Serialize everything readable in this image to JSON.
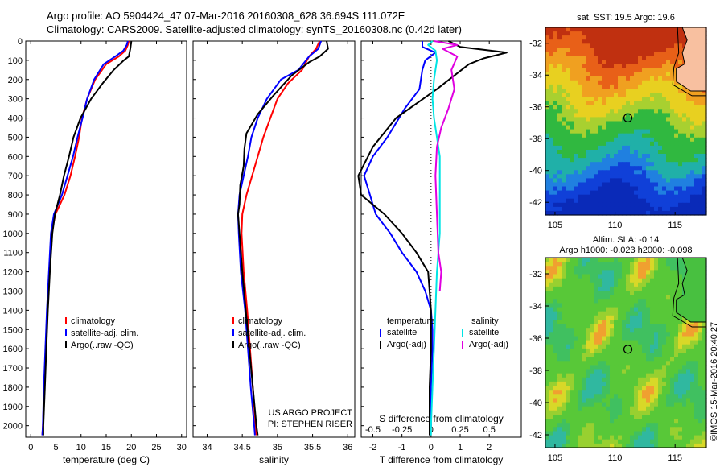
{
  "header": {
    "line1": "Argo profile: AO 5904424_47 07-Mar-2016 20160308_628 36.694S 111.072E",
    "line2": "Climatology: CARS2009. Satellite-adjusted climatology: synTS_20160308.nc (0.42d later)"
  },
  "stamp": "©IMOS 15-Mar-2016 20:40:27",
  "colors": {
    "climatology": "#ff0000",
    "satellite": "#0000ff",
    "argo": "#000000",
    "sal_satellite": "#00e5e5",
    "sal_argo": "#e000e0"
  },
  "chart_data": [
    {
      "type": "line",
      "id": "temperature",
      "xlabel": "temperature (deg C)",
      "ylabel": "",
      "xlim": [
        -1,
        31
      ],
      "ylim": [
        0,
        2060
      ],
      "y_reversed": true,
      "xticks": [
        0,
        5,
        10,
        15,
        20,
        25,
        30
      ],
      "yticks": [
        0,
        100,
        200,
        300,
        400,
        500,
        600,
        700,
        800,
        900,
        1000,
        1100,
        1200,
        1300,
        1400,
        1500,
        1600,
        1700,
        1800,
        1900,
        2000
      ],
      "legend": {
        "placement": "lower-left",
        "entries": [
          "climatology",
          "satellite-adj. clim.",
          "Argo(..raw -QC)"
        ]
      },
      "series": [
        {
          "name": "climatology",
          "color": "#ff0000",
          "points": [
            [
              19.5,
              0
            ],
            [
              19.3,
              20
            ],
            [
              18.8,
              50
            ],
            [
              17.5,
              80
            ],
            [
              15,
              120
            ],
            [
              12.8,
              200
            ],
            [
              11.2,
              300
            ],
            [
              10.2,
              400
            ],
            [
              9.6,
              500
            ],
            [
              8.8,
              600
            ],
            [
              7.9,
              700
            ],
            [
              6.7,
              800
            ],
            [
              4.9,
              900
            ],
            [
              4.1,
              1000
            ],
            [
              3.7,
              1200
            ],
            [
              3.3,
              1400
            ],
            [
              3.0,
              1600
            ],
            [
              2.7,
              1800
            ],
            [
              2.4,
              2000
            ],
            [
              2.3,
              2050
            ]
          ]
        },
        {
          "name": "satellite-adj. clim.",
          "color": "#0000ff",
          "points": [
            [
              19.3,
              0
            ],
            [
              19.1,
              20
            ],
            [
              18.4,
              50
            ],
            [
              16.8,
              80
            ],
            [
              14.5,
              120
            ],
            [
              12.6,
              200
            ],
            [
              11.2,
              300
            ],
            [
              10.3,
              400
            ],
            [
              9.3,
              500
            ],
            [
              8.4,
              600
            ],
            [
              7.3,
              700
            ],
            [
              6.2,
              800
            ],
            [
              4.6,
              900
            ],
            [
              4.0,
              1000
            ],
            [
              3.6,
              1200
            ],
            [
              3.2,
              1400
            ],
            [
              2.9,
              1600
            ],
            [
              2.6,
              1800
            ],
            [
              2.4,
              2000
            ],
            [
              2.3,
              2050
            ]
          ]
        },
        {
          "name": "Argo(..raw -QC)",
          "color": "#000000",
          "points": [
            [
              20.0,
              0
            ],
            [
              19.8,
              40
            ],
            [
              19.5,
              80
            ],
            [
              18.5,
              100
            ],
            [
              16.5,
              150
            ],
            [
              14.3,
              220
            ],
            [
              12.0,
              300
            ],
            [
              9.9,
              400
            ],
            [
              8.5,
              500
            ],
            [
              7.6,
              600
            ],
            [
              6.6,
              700
            ],
            [
              5.8,
              800
            ],
            [
              4.8,
              900
            ],
            [
              4.3,
              1000
            ],
            [
              3.8,
              1200
            ],
            [
              3.4,
              1400
            ],
            [
              3.1,
              1600
            ],
            [
              2.8,
              1800
            ],
            [
              2.5,
              2000
            ],
            [
              2.5,
              2050
            ]
          ]
        }
      ]
    },
    {
      "type": "line",
      "id": "salinity",
      "xlabel": "salinity",
      "ylabel": "",
      "xlim": [
        33.8,
        36.1
      ],
      "ylim": [
        0,
        2060
      ],
      "y_reversed": true,
      "xticks": [
        34,
        34.5,
        35,
        35.5,
        36
      ],
      "legend": {
        "placement": "lower-left",
        "entries": [
          "climatology",
          "satellite-adj. clim.",
          "Argo(..raw -QC)"
        ]
      },
      "annotation": [
        "US ARGO PROJECT",
        "PI: STEPHEN RISER"
      ],
      "series": [
        {
          "name": "climatology",
          "color": "#ff0000",
          "points": [
            [
              35.6,
              0
            ],
            [
              35.55,
              40
            ],
            [
              35.45,
              80
            ],
            [
              35.35,
              150
            ],
            [
              35.15,
              220
            ],
            [
              35.0,
              300
            ],
            [
              34.9,
              400
            ],
            [
              34.8,
              500
            ],
            [
              34.72,
              600
            ],
            [
              34.64,
              700
            ],
            [
              34.56,
              800
            ],
            [
              34.5,
              900
            ],
            [
              34.49,
              1000
            ],
            [
              34.52,
              1200
            ],
            [
              34.57,
              1400
            ],
            [
              34.61,
              1600
            ],
            [
              34.65,
              1800
            ],
            [
              34.69,
              2000
            ],
            [
              34.7,
              2050
            ]
          ]
        },
        {
          "name": "satellite-adj. clim.",
          "color": "#0000ff",
          "points": [
            [
              35.62,
              0
            ],
            [
              35.58,
              40
            ],
            [
              35.45,
              80
            ],
            [
              35.3,
              150
            ],
            [
              35.05,
              200
            ],
            [
              34.85,
              300
            ],
            [
              34.72,
              400
            ],
            [
              34.63,
              500
            ],
            [
              34.58,
              600
            ],
            [
              34.52,
              700
            ],
            [
              34.46,
              800
            ],
            [
              34.44,
              900
            ],
            [
              34.45,
              1000
            ],
            [
              34.48,
              1200
            ],
            [
              34.54,
              1400
            ],
            [
              34.58,
              1600
            ],
            [
              34.62,
              1800
            ],
            [
              34.67,
              2000
            ],
            [
              34.68,
              2050
            ]
          ]
        },
        {
          "name": "Argo(..raw -QC)",
          "color": "#000000",
          "points": [
            [
              35.7,
              0
            ],
            [
              35.72,
              40
            ],
            [
              35.6,
              80
            ],
            [
              35.45,
              110
            ],
            [
              35.2,
              180
            ],
            [
              34.95,
              280
            ],
            [
              34.72,
              380
            ],
            [
              34.56,
              480
            ],
            [
              34.53,
              560
            ],
            [
              34.52,
              650
            ],
            [
              34.47,
              750
            ],
            [
              34.46,
              850
            ],
            [
              34.44,
              900
            ],
            [
              34.46,
              1000
            ],
            [
              34.5,
              1200
            ],
            [
              34.55,
              1400
            ],
            [
              34.6,
              1600
            ],
            [
              34.65,
              1800
            ],
            [
              34.7,
              2000
            ],
            [
              34.72,
              2050
            ]
          ]
        }
      ]
    },
    {
      "type": "line",
      "id": "difference",
      "xlabel": "T difference from climatology",
      "ylabel": "",
      "top_axis_label": "S difference from climatology",
      "xlim": [
        -2.4,
        3.1
      ],
      "ylim": [
        0,
        2060
      ],
      "y_reversed": true,
      "xticks": [
        -2,
        -1,
        0,
        1,
        2
      ],
      "top_ticks": [
        "-0.5",
        "-0.25",
        "0",
        "0.25",
        "0.5"
      ],
      "legend": {
        "placement": "lower",
        "entries": [
          "temperature",
          "satellite",
          "Argo(-adj)",
          "salinity",
          "satellite",
          "Argo(-adj)"
        ]
      },
      "series": [
        {
          "name": "satellite",
          "color": "#0000ff",
          "points": [
            [
              -0.3,
              0
            ],
            [
              -0.3,
              30
            ],
            [
              0.15,
              60
            ],
            [
              -0.2,
              100
            ],
            [
              -0.3,
              150
            ],
            [
              -0.4,
              250
            ],
            [
              -0.9,
              350
            ],
            [
              -1.5,
              500
            ],
            [
              -2.0,
              600
            ],
            [
              -2.3,
              700
            ],
            [
              -2.1,
              800
            ],
            [
              -1.9,
              900
            ],
            [
              -1.4,
              1000
            ],
            [
              -1.0,
              1100
            ],
            [
              -0.5,
              1200
            ],
            [
              -0.2,
              1300
            ],
            [
              0.0,
              1400
            ],
            [
              0.05,
              1500
            ],
            [
              0.05,
              1600
            ],
            [
              0.0,
              1800
            ],
            [
              0.0,
              2000
            ],
            [
              -0.05,
              2050
            ]
          ]
        },
        {
          "name": "Argo(-adj)",
          "color": "#000000",
          "points": [
            [
              0.6,
              0
            ],
            [
              1.0,
              30
            ],
            [
              2.6,
              60
            ],
            [
              1.8,
              90
            ],
            [
              1.3,
              120
            ],
            [
              0.2,
              250
            ],
            [
              -1.2,
              400
            ],
            [
              -2.0,
              550
            ],
            [
              -2.5,
              700
            ],
            [
              -2.4,
              800
            ],
            [
              -1.6,
              900
            ],
            [
              -1.0,
              1000
            ],
            [
              -0.5,
              1100
            ],
            [
              -0.1,
              1200
            ],
            [
              0.0,
              1400
            ],
            [
              0.0,
              1600
            ],
            [
              -0.05,
              1800
            ],
            [
              -0.05,
              2000
            ],
            [
              -0.05,
              2050
            ]
          ]
        },
        {
          "name": "salinity satellite",
          "color": "#00e5e5",
          "points": [
            [
              0.05,
              0
            ],
            [
              -0.1,
              20
            ],
            [
              0.15,
              50
            ],
            [
              0.2,
              100
            ],
            [
              0.1,
              200
            ],
            [
              0.05,
              300
            ],
            [
              0.1,
              400
            ],
            [
              0.2,
              500
            ],
            [
              0.3,
              600
            ],
            [
              0.3,
              800
            ],
            [
              0.3,
              1000
            ],
            [
              0.2,
              1200
            ],
            [
              0.15,
              1400
            ],
            [
              0.1,
              1600
            ],
            [
              0.05,
              1800
            ],
            [
              0.0,
              2000
            ],
            [
              0.0,
              2050
            ]
          ]
        },
        {
          "name": "salinity Argo(-adj)",
          "color": "#e000e0",
          "points": [
            [
              0.1,
              0
            ],
            [
              0.9,
              20
            ],
            [
              0.4,
              40
            ],
            [
              0.9,
              80
            ],
            [
              0.7,
              150
            ],
            [
              0.8,
              250
            ],
            [
              0.6,
              350
            ],
            [
              0.35,
              450
            ],
            [
              0.2,
              550
            ],
            [
              0.15,
              700
            ],
            [
              0.2,
              900
            ],
            [
              0.25,
              1100
            ],
            [
              0.35,
              1200
            ],
            [
              0.3,
              1300
            ]
          ]
        }
      ]
    }
  ],
  "maps": [
    {
      "id": "sst-map",
      "title": "sat. SST: 19.5 Argo: 19.6",
      "lon_ticks": [
        "105",
        "110",
        "115"
      ],
      "lat_ticks": [
        "-32",
        "-34",
        "-36",
        "-38",
        "-40",
        "-42"
      ],
      "marker": {
        "lon": 111.07,
        "lat": -36.69
      }
    },
    {
      "id": "sla-map",
      "title_line1": "Altim. SLA: -0.14",
      "title_line2": "Argo h1000: -0.023 h2000: -0.098",
      "lon_ticks": [
        "105",
        "110",
        "115"
      ],
      "lat_ticks": [
        "-32",
        "-34",
        "-36",
        "-38",
        "-40",
        "-42"
      ],
      "marker": {
        "lon": 111.07,
        "lat": -36.69
      }
    }
  ]
}
